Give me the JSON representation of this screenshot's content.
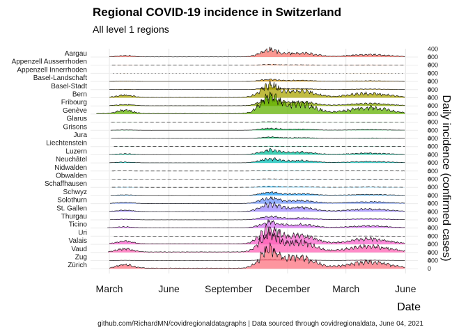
{
  "chart_data": {
    "type": "ridgeline",
    "title": "Regional COVID-19 incidence in Switzerland",
    "subtitle": "All level 1 regions",
    "xlabel": "Date",
    "ylabel": "Daily incidence (confirmed cases)",
    "caption": "github.com/RichardMN/covidregionaldatagraphs | Data sourced through covidregionaldata, June 04, 2021",
    "x_range": [
      "2020-02-01",
      "2021-06-20"
    ],
    "x_ticks": [
      {
        "date": "2020-03-01",
        "label": "March"
      },
      {
        "date": "2020-06-01",
        "label": "June"
      },
      {
        "date": "2020-09-01",
        "label": "September"
      },
      {
        "date": "2020-12-01",
        "label": "December"
      },
      {
        "date": "2021-03-01",
        "label": "March"
      },
      {
        "date": "2021-06-01",
        "label": "June"
      }
    ],
    "y_tick_labels": [
      "0",
      "400"
    ],
    "y_range": [
      0,
      400
    ],
    "regions": [
      {
        "name": "Aargau",
        "color": "#f8766d",
        "start": "2020-03-01",
        "peak": 400,
        "style": "solid"
      },
      {
        "name": "Appenzell Ausserrhoden",
        "color": "#f07f4e",
        "start": "2020-03-05",
        "peak": 45,
        "style": "dashed"
      },
      {
        "name": "Appenzell Innerrhoden",
        "color": "#e38900",
        "start": "2020-03-07",
        "peak": 10,
        "style": "dotted"
      },
      {
        "name": "Basel-Landschaft",
        "color": "#d39200",
        "start": "2020-03-01",
        "peak": 110,
        "style": "solid"
      },
      {
        "name": "Basel-Stadt",
        "color": "#c09b00",
        "start": "2020-03-01",
        "peak": 90,
        "style": "solid"
      },
      {
        "name": "Bern",
        "color": "#a9a400",
        "start": "2020-03-01",
        "peak": 700,
        "style": "solid"
      },
      {
        "name": "Fribourg",
        "color": "#8bab00",
        "start": "2020-03-01",
        "peak": 380,
        "style": "solid"
      },
      {
        "name": "Genève",
        "color": "#61b200",
        "start": "2020-02-10",
        "peak": 1000,
        "style": "solid"
      },
      {
        "name": "Glarus",
        "color": "#00b629",
        "start": "2020-03-04",
        "peak": 25,
        "style": "dashed"
      },
      {
        "name": "Grisons",
        "color": "#00ba4a",
        "start": "2020-03-03",
        "peak": 110,
        "style": "solid"
      },
      {
        "name": "Jura",
        "color": "#00bc67",
        "start": "2020-03-04",
        "peak": 75,
        "style": "solid"
      },
      {
        "name": "Liechtenstein",
        "color": "#00be81",
        "start": "2020-03-08",
        "peak": 18,
        "style": "dashed"
      },
      {
        "name": "Luzern",
        "color": "#00bf9c",
        "start": "2020-03-01",
        "peak": 260,
        "style": "solid"
      },
      {
        "name": "Neuchâtel",
        "color": "#00bdb6",
        "start": "2020-03-01",
        "peak": 220,
        "style": "solid"
      },
      {
        "name": "Nidwalden",
        "color": "#00b9cf",
        "start": "2020-03-05",
        "peak": 20,
        "style": "dashed"
      },
      {
        "name": "Obwalden",
        "color": "#00b3e4",
        "start": "2020-03-05",
        "peak": 15,
        "style": "dashed"
      },
      {
        "name": "Schaffhausen",
        "color": "#00abf5",
        "start": "2020-03-05",
        "peak": 50,
        "style": "dashed"
      },
      {
        "name": "Schwyz",
        "color": "#1ca1ff",
        "start": "2020-03-03",
        "peak": 160,
        "style": "solid"
      },
      {
        "name": "Solothurn",
        "color": "#6f95ff",
        "start": "2020-03-02",
        "peak": 300,
        "style": "solid"
      },
      {
        "name": "St. Gallen",
        "color": "#9d8aff",
        "start": "2020-03-01",
        "peak": 420,
        "style": "solid"
      },
      {
        "name": "Thurgau",
        "color": "#bd7dfb",
        "start": "2020-03-02",
        "peak": 180,
        "style": "solid"
      },
      {
        "name": "Ticino",
        "color": "#d774f0",
        "start": "2020-02-27",
        "peak": 340,
        "style": "solid"
      },
      {
        "name": "Uri",
        "color": "#eb68e0",
        "start": "2020-03-08",
        "peak": 22,
        "style": "dashed"
      },
      {
        "name": "Valais",
        "color": "#f765cc",
        "start": "2020-03-01",
        "peak": 850,
        "style": "solid"
      },
      {
        "name": "Vaud",
        "color": "#ff63b4",
        "start": "2020-02-28",
        "peak": 1000,
        "style": "solid"
      },
      {
        "name": "Zug",
        "color": "#ff689a",
        "start": "2020-03-01",
        "peak": 70,
        "style": "solid"
      },
      {
        "name": "Zürich",
        "color": "#fc717f",
        "start": "2020-03-01",
        "peak": 1100,
        "style": "solid"
      }
    ]
  }
}
